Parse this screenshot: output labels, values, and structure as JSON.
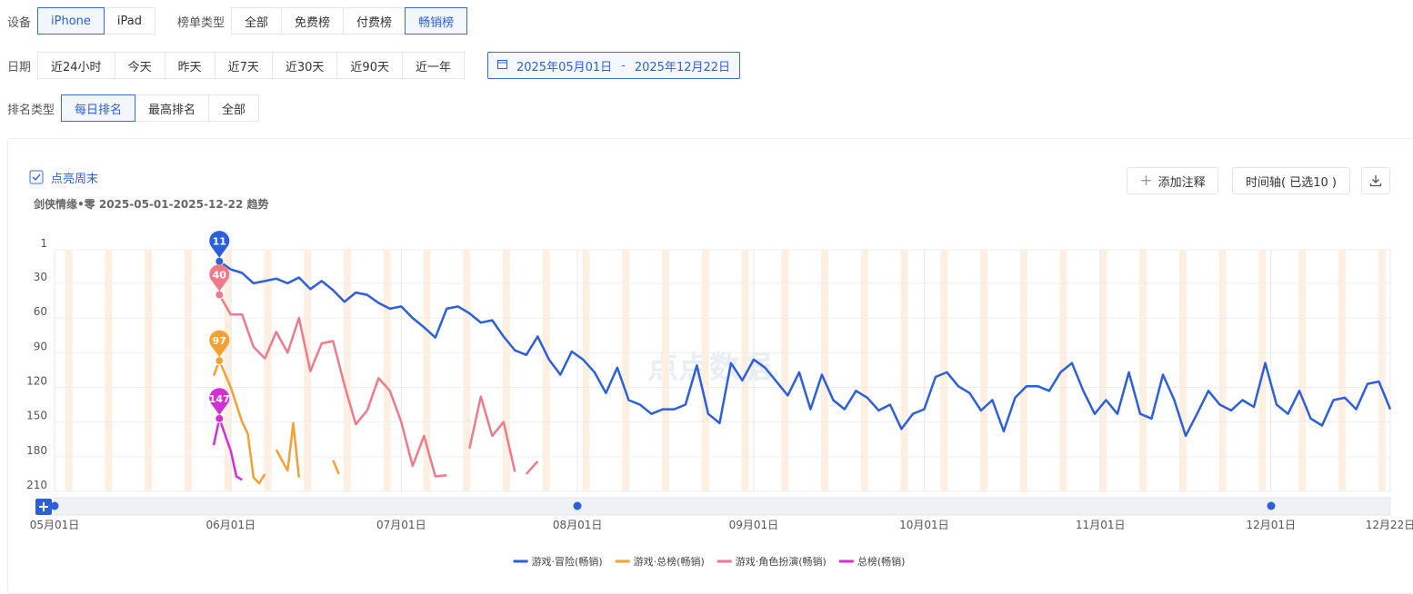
{
  "filters": [
    [
      {
        "label": "设备",
        "options": [
          "iPhone",
          "iPad"
        ],
        "selected": 0
      },
      {
        "label": "榜单类型",
        "options": [
          "全部",
          "免费榜",
          "付费榜",
          "畅销榜"
        ],
        "selected": 3
      }
    ],
    [
      {
        "label": "日期",
        "options": [
          "近24小时",
          "今天",
          "昨天",
          "近7天",
          "近30天",
          "近90天",
          "近一年"
        ],
        "date_range": {
          "start": "2025年05月01日",
          "separator": "-",
          "end": "2025年12月22日"
        }
      }
    ],
    [
      {
        "label": "排名类型",
        "options": [
          "每日排名",
          "最高排名",
          "全部"
        ],
        "selected": 0
      }
    ]
  ],
  "toolbar": {
    "highlight_weekends_label": "点亮周末",
    "add_note": "添加注释",
    "timeline": "时间轴( 已选10 )"
  },
  "watermark": "点点数据",
  "chart_data": {
    "type": "line",
    "title": "剑侠情缘•零 2025-05-01-2025-12-22 趋势",
    "highlight_weekends": true,
    "y_inverted": true,
    "ylim": [
      1,
      210
    ],
    "yticks": [
      1,
      30,
      60,
      90,
      120,
      150,
      180,
      210
    ],
    "xlim": [
      "05-01",
      "12-22"
    ],
    "xticks": [
      {
        "value": "05-01",
        "label": "05月01日"
      },
      {
        "value": "06-01",
        "label": "06月01日"
      },
      {
        "value": "07-01",
        "label": "07月01日"
      },
      {
        "value": "08-01",
        "label": "08月01日"
      },
      {
        "value": "09-01",
        "label": "09月01日"
      },
      {
        "value": "10-01",
        "label": "10月01日"
      },
      {
        "value": "11-01",
        "label": "11月01日"
      },
      {
        "value": "12-01",
        "label": "12月01日"
      },
      {
        "value": "12-22",
        "label": "12月22日"
      }
    ],
    "series": [
      {
        "name": "游戏·冒险(畅销)",
        "color": "#2b5fdc",
        "x": [
          "05-30",
          "06-01",
          "06-03",
          "06-05",
          "06-07",
          "06-09",
          "06-11",
          "06-13",
          "06-15",
          "06-17",
          "06-19",
          "06-21",
          "06-23",
          "06-25",
          "06-27",
          "06-29",
          "07-01",
          "07-03",
          "07-05",
          "07-07",
          "07-09",
          "07-11",
          "07-13",
          "07-15",
          "07-17",
          "07-19",
          "07-21",
          "07-23",
          "07-25",
          "07-27",
          "07-29",
          "07-31",
          "08-02",
          "08-04",
          "08-06",
          "08-08",
          "08-10",
          "08-12",
          "08-14",
          "08-16",
          "08-18",
          "08-20",
          "08-22",
          "08-24",
          "08-26",
          "08-28",
          "08-30",
          "09-01",
          "09-03",
          "09-05",
          "09-07",
          "09-09",
          "09-11",
          "09-13",
          "09-15",
          "09-17",
          "09-19",
          "09-21",
          "09-23",
          "09-25",
          "09-27",
          "09-29",
          "10-01",
          "10-03",
          "10-05",
          "10-07",
          "10-09",
          "10-11",
          "10-13",
          "10-15",
          "10-17",
          "10-19",
          "10-21",
          "10-23",
          "10-25",
          "10-27",
          "10-29",
          "10-31",
          "11-02",
          "11-04",
          "11-06",
          "11-08",
          "11-10",
          "11-12",
          "11-14",
          "11-16",
          "11-18",
          "11-20",
          "11-22",
          "11-24",
          "11-26",
          "11-28",
          "11-30",
          "12-02",
          "12-04",
          "12-06",
          "12-08",
          "12-10",
          "12-12",
          "12-14",
          "12-16",
          "12-18",
          "12-20",
          "12-22"
        ],
        "values": [
          11,
          18,
          21,
          30,
          28,
          26,
          30,
          25,
          35,
          28,
          36,
          46,
          38,
          40,
          47,
          52,
          50,
          60,
          68,
          77,
          52,
          50,
          56,
          64,
          62,
          76,
          88,
          92,
          76,
          96,
          109,
          89,
          96,
          107,
          125,
          103,
          131,
          135,
          143,
          139,
          139,
          135,
          101,
          143,
          151,
          99,
          114,
          96,
          103,
          115,
          127,
          107,
          139,
          109,
          131,
          139,
          123,
          129,
          140,
          135,
          156,
          143,
          139,
          111,
          107,
          119,
          125,
          140,
          131,
          158,
          129,
          119,
          119,
          123,
          107,
          99,
          123,
          143,
          131,
          143,
          107,
          143,
          147,
          109,
          131,
          162,
          143,
          123,
          135,
          140,
          131,
          137,
          99,
          135,
          143,
          123,
          147,
          153,
          131,
          129,
          139,
          117,
          115,
          139
        ]
      },
      {
        "name": "游戏·总榜(畅销)",
        "color": "#f5a032",
        "x": [
          "05-29",
          "05-30",
          "06-01",
          "06-03",
          "06-04",
          "06-05",
          "06-06",
          "06-07",
          "06-08",
          "06-09",
          "06-11",
          "06-12",
          "06-13",
          "06-14",
          "06-19",
          "06-20"
        ],
        "values": [
          110,
          97,
          120,
          150,
          160,
          198,
          203,
          195,
          null,
          174,
          192,
          151,
          198,
          null,
          183,
          195
        ]
      },
      {
        "name": "游戏·角色扮演(畅销)",
        "color": "#f07a8a",
        "x": [
          "05-30",
          "06-01",
          "06-03",
          "06-05",
          "06-07",
          "06-09",
          "06-11",
          "06-13",
          "06-15",
          "06-17",
          "06-19",
          "06-21",
          "06-23",
          "06-25",
          "06-27",
          "06-29",
          "07-01",
          "07-03",
          "07-05",
          "07-07",
          "07-09",
          "07-11",
          "07-13",
          "07-15",
          "07-17",
          "07-19",
          "07-21",
          "07-22",
          "07-23",
          "07-25"
        ],
        "values": [
          40,
          57,
          57,
          85,
          95,
          72,
          90,
          60,
          106,
          82,
          80,
          118,
          152,
          140,
          112,
          123,
          150,
          188,
          162,
          197,
          196,
          null,
          173,
          128,
          162,
          150,
          193,
          null,
          195,
          184
        ]
      },
      {
        "name": "总榜(畅销)",
        "color": "#d42fd4",
        "x": [
          "05-29",
          "05-30",
          "06-01",
          "06-02",
          "06-03"
        ],
        "values": [
          170,
          147,
          175,
          197,
          200
        ]
      }
    ]
  }
}
